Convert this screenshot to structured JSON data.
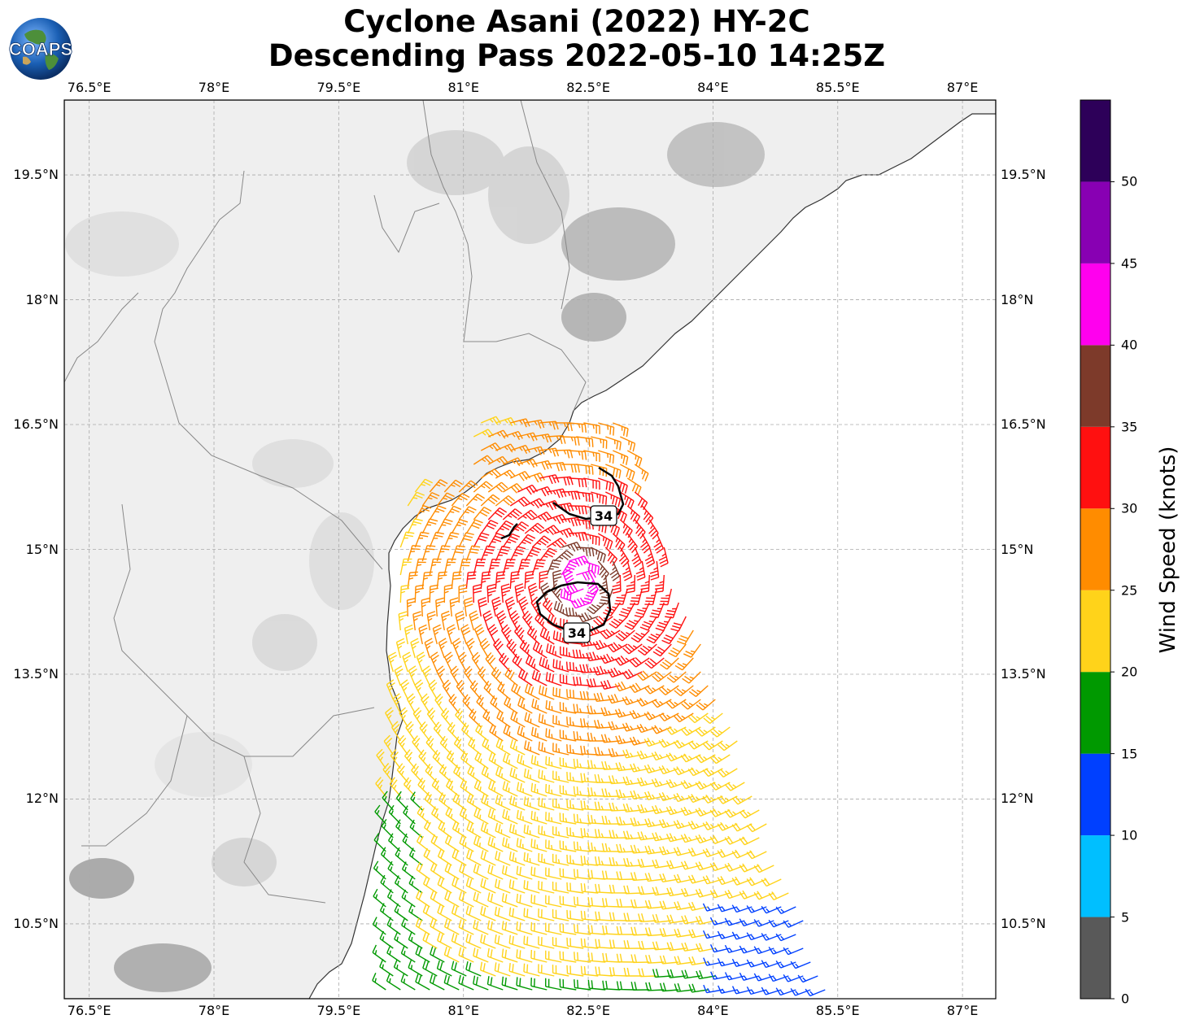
{
  "title": {
    "line1": "Cyclone Asani (2022) HY-2C",
    "line2": "Descending Pass 2022-05-10 14:25Z"
  },
  "logo": {
    "text": "COAPS"
  },
  "map": {
    "lon_range": [
      76.2,
      87.4
    ],
    "lat_range": [
      9.6,
      20.4
    ],
    "lon_ticks": [
      "76.5°E",
      "78°E",
      "79.5°E",
      "81°E",
      "82.5°E",
      "84°E",
      "85.5°E",
      "87°E"
    ],
    "lon_values": [
      76.5,
      78,
      79.5,
      81,
      82.5,
      84,
      85.5,
      87
    ],
    "lat_ticks": [
      "19.5°N",
      "18°N",
      "16.5°N",
      "15°N",
      "13.5°N",
      "12°N",
      "10.5°N"
    ],
    "lat_values": [
      19.5,
      18,
      16.5,
      15,
      13.5,
      12,
      10.5
    ],
    "grid": true
  },
  "wind_radii": [
    {
      "label": "34",
      "lat": 14.35,
      "lon": 82.3
    },
    {
      "label": "34",
      "lat": 15.72,
      "lon": 82.62
    }
  ],
  "colorbar": {
    "label": "Wind Speed (knots)",
    "ticks": [
      "0",
      "5",
      "10",
      "15",
      "20",
      "25",
      "30",
      "35",
      "40",
      "45",
      "50"
    ],
    "bins": [
      0,
      5,
      10,
      15,
      20,
      25,
      30,
      35,
      40,
      45,
      50,
      55
    ],
    "colors": [
      "#595959",
      "#00bfff",
      "#0040ff",
      "#009900",
      "#ffd31a",
      "#ff8c00",
      "#ff1010",
      "#7d3a2a",
      "#ff00ee",
      "#8800b3",
      "#2d0059"
    ]
  },
  "colors": {
    "land_light": "#eeeeee",
    "coast": "#333333",
    "border": "#888888",
    "grid": "#aaaaaa"
  }
}
